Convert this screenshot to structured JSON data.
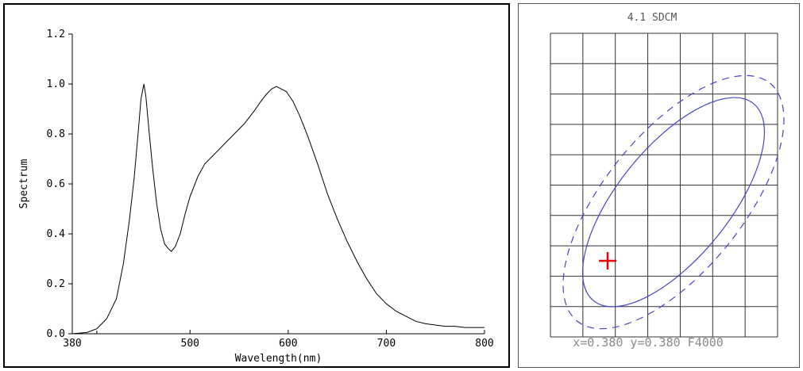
{
  "chart_data": [
    {
      "type": "line",
      "title": "",
      "xlabel": "Wavelength(nm)",
      "ylabel": "Spectrum",
      "xlim": [
        380,
        800
      ],
      "ylim": [
        0,
        1.2
      ],
      "x_ticks": [
        "380",
        "500",
        "600",
        "700",
        "800"
      ],
      "y_ticks": [
        "0.0",
        "0.2",
        "0.4",
        "0.6",
        "0.8",
        "1.0",
        "1.2"
      ],
      "grid": false,
      "line_color": "#000000",
      "series": [
        {
          "x": [
            380,
            395,
            405,
            415,
            425,
            432,
            438,
            443,
            447,
            450,
            453,
            455,
            458,
            462,
            466,
            470,
            474,
            478,
            481,
            485,
            490,
            495,
            500,
            508,
            515,
            525,
            535,
            545,
            555,
            565,
            572,
            578,
            583,
            588,
            593,
            598,
            605,
            612,
            620,
            630,
            640,
            650,
            660,
            670,
            680,
            690,
            700,
            710,
            720,
            730,
            740,
            750,
            760,
            770,
            780,
            790,
            800
          ],
          "y": [
            0.0,
            0.005,
            0.02,
            0.06,
            0.14,
            0.28,
            0.45,
            0.62,
            0.8,
            0.94,
            1.0,
            0.95,
            0.82,
            0.66,
            0.52,
            0.42,
            0.36,
            0.34,
            0.33,
            0.35,
            0.4,
            0.48,
            0.55,
            0.63,
            0.68,
            0.72,
            0.76,
            0.8,
            0.84,
            0.89,
            0.93,
            0.96,
            0.98,
            0.99,
            0.98,
            0.97,
            0.93,
            0.87,
            0.79,
            0.68,
            0.56,
            0.46,
            0.37,
            0.29,
            0.22,
            0.16,
            0.12,
            0.09,
            0.07,
            0.05,
            0.04,
            0.035,
            0.03,
            0.03,
            0.025,
            0.025,
            0.025
          ]
        }
      ]
    },
    {
      "type": "scatter",
      "title": "4.1 SDCM",
      "footer": "x=0.380 y=0.380 F4000",
      "grid": true,
      "grid_columns": 7,
      "grid_rows": 10,
      "ellipse_color": "#4444cc",
      "marker_color": "#ee0000",
      "point": {
        "x": 0.38,
        "y": 0.38
      }
    }
  ]
}
